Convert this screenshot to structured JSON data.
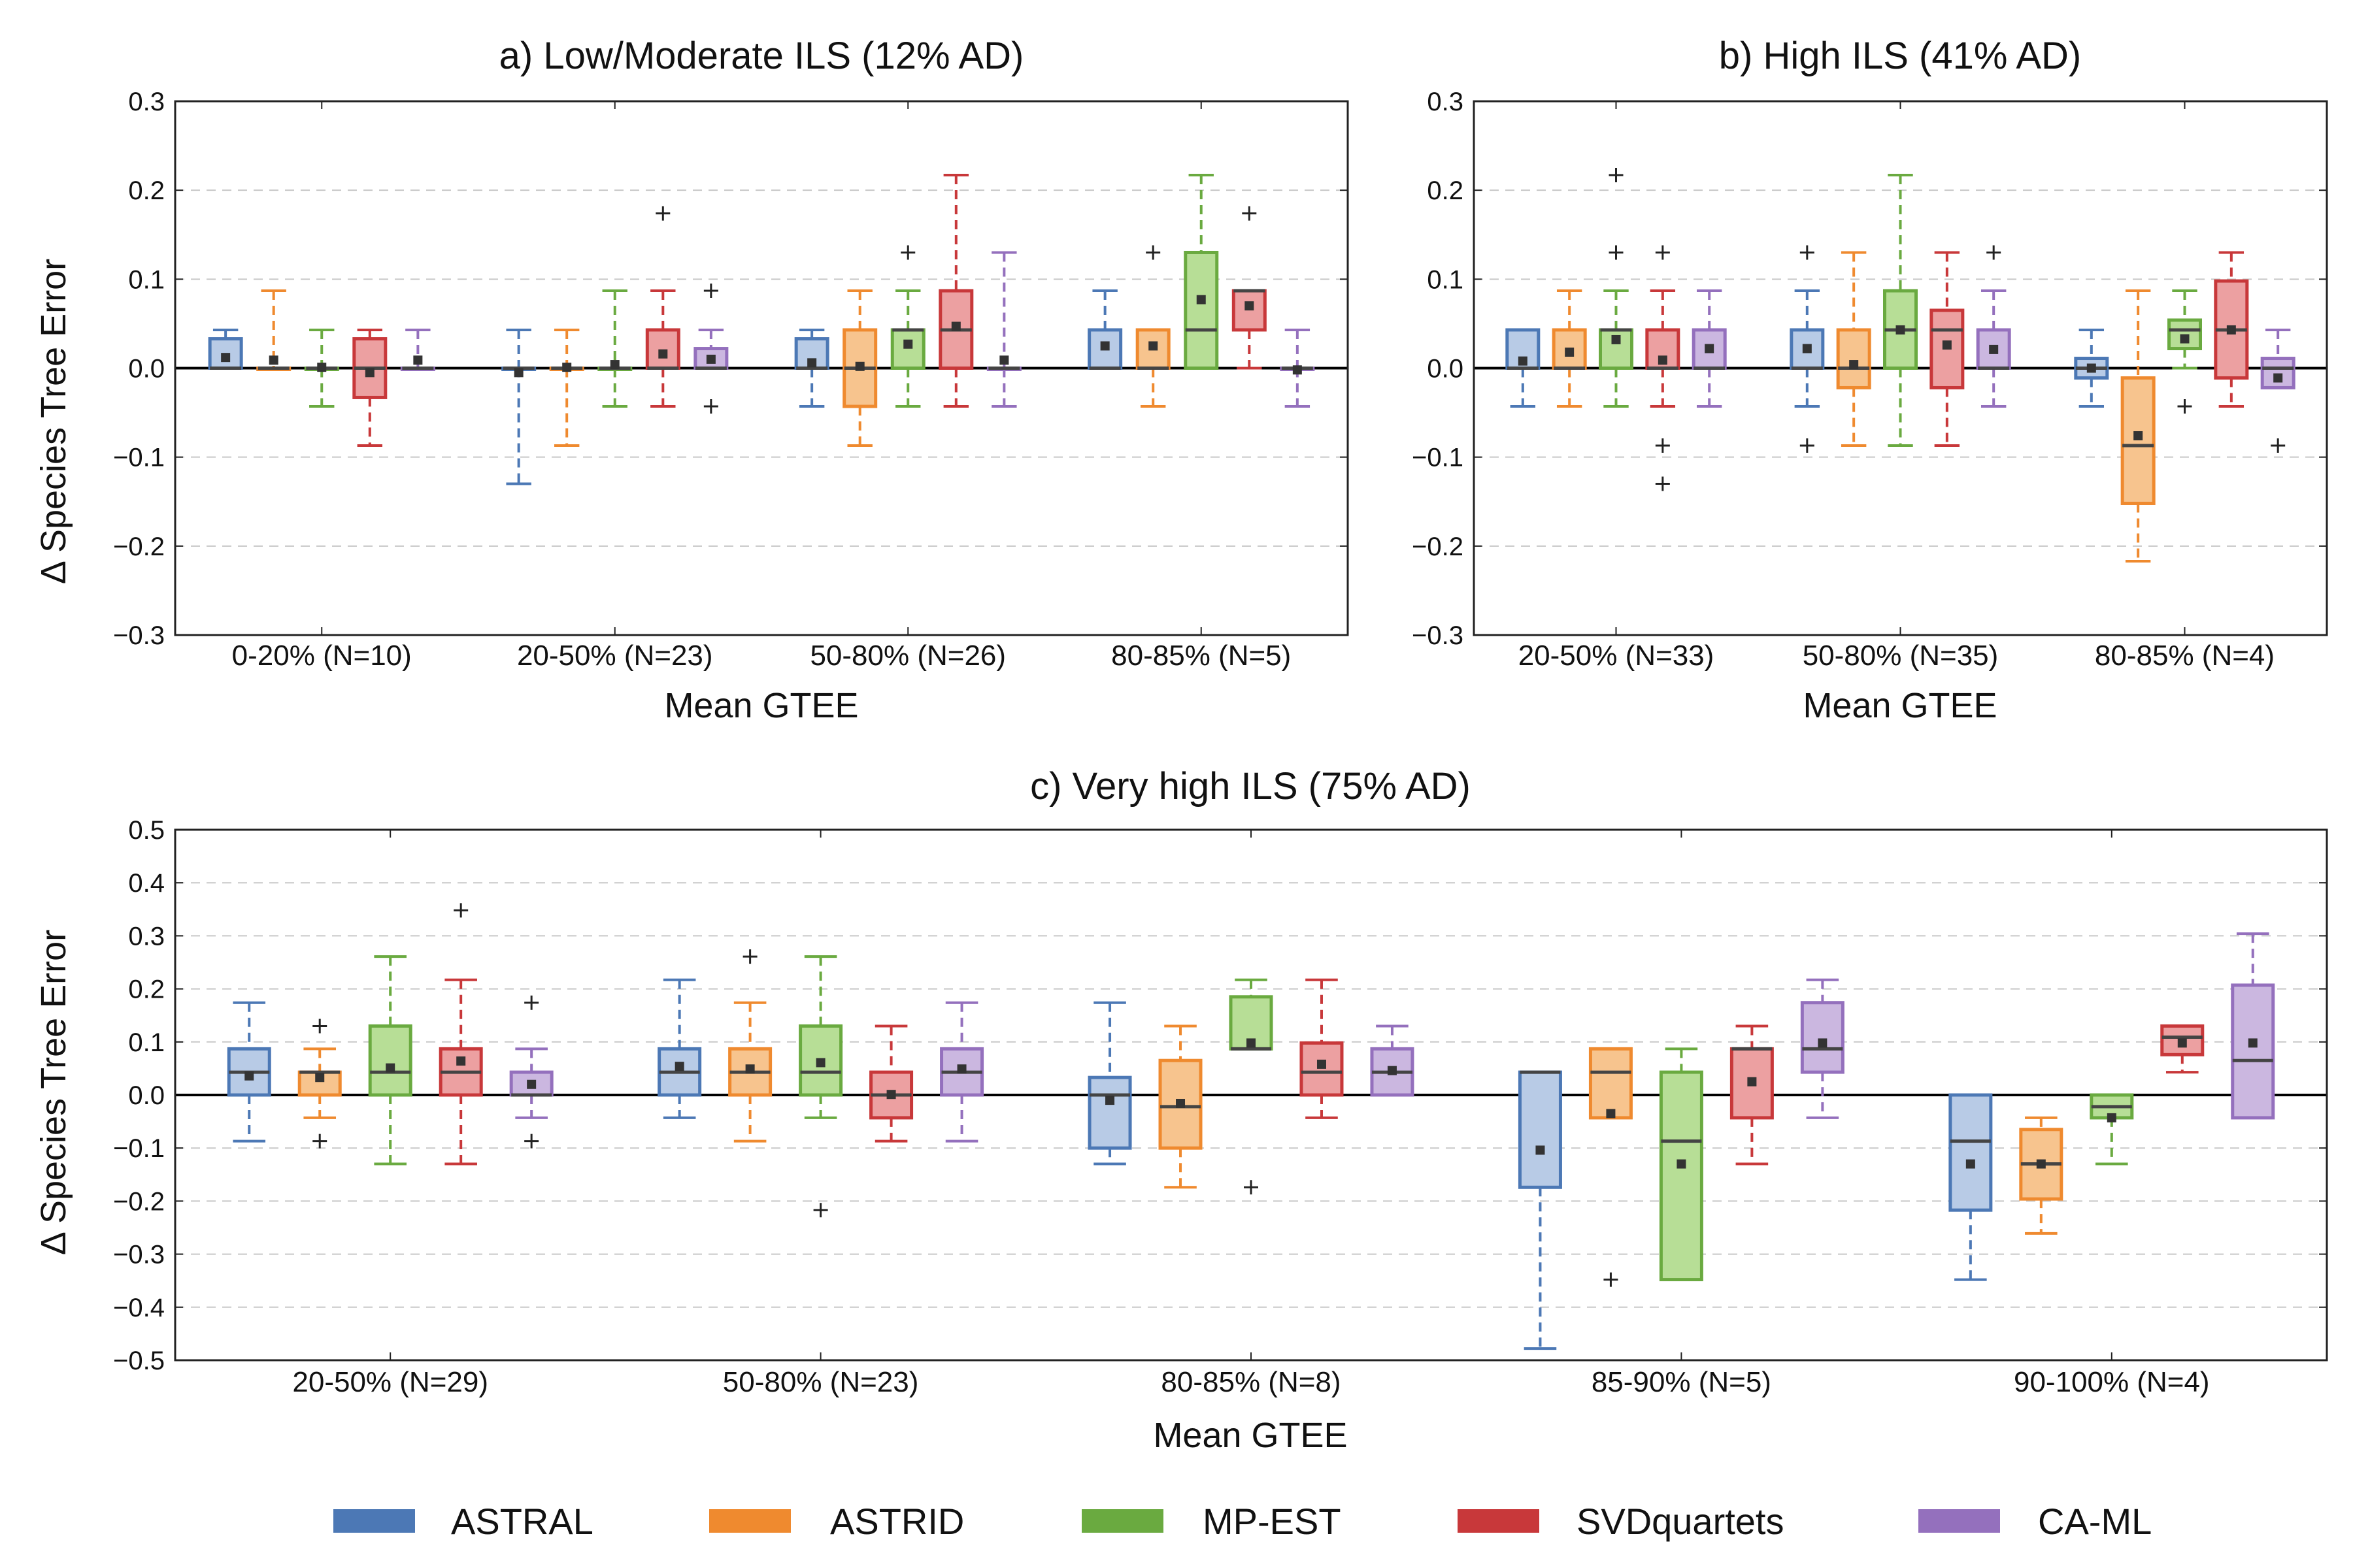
{
  "chart_data": [
    {
      "type": "box",
      "title": "a) Low/Moderate ILS (12% AD)",
      "xlabel": "Mean GTEE",
      "ylabel": "Δ Species Tree Error",
      "ylim": [
        -0.3,
        0.3
      ],
      "yticks": [
        "0.3",
        "0.2",
        "0.1",
        "0.0",
        "−0.1",
        "−0.2",
        "−0.3"
      ],
      "ytick_values": [
        0.3,
        0.2,
        0.1,
        0.0,
        -0.1,
        -0.2,
        -0.3
      ],
      "grid": "horizontal dashed",
      "categories": [
        "0-20% (N=10)",
        "20-50% (N=23)",
        "50-80% (N=26)",
        "80-85% (N=5)"
      ],
      "series": [
        {
          "name": "ASTRAL",
          "boxes": [
            {
              "q1": 0.0,
              "med": 0.0,
              "q3": 0.033,
              "wlo": 0.0,
              "whi": 0.043,
              "mean": 0.012,
              "outliers": []
            },
            {
              "q1": 0.0,
              "med": 0.0,
              "q3": 0.0,
              "wlo": -0.13,
              "whi": 0.043,
              "mean": -0.005,
              "outliers": []
            },
            {
              "q1": 0.0,
              "med": 0.0,
              "q3": 0.033,
              "wlo": -0.043,
              "whi": 0.043,
              "mean": 0.006,
              "outliers": []
            },
            {
              "q1": 0.0,
              "med": 0.0,
              "q3": 0.043,
              "wlo": 0.0,
              "whi": 0.087,
              "mean": 0.025,
              "outliers": []
            }
          ]
        },
        {
          "name": "ASTRID",
          "boxes": [
            {
              "q1": 0.0,
              "med": 0.0,
              "q3": 0.0,
              "wlo": 0.0,
              "whi": 0.087,
              "mean": 0.009,
              "outliers": []
            },
            {
              "q1": 0.0,
              "med": 0.0,
              "q3": 0.0,
              "wlo": -0.087,
              "whi": 0.043,
              "mean": 0.001,
              "outliers": []
            },
            {
              "q1": -0.043,
              "med": 0.0,
              "q3": 0.043,
              "wlo": -0.087,
              "whi": 0.087,
              "mean": 0.002,
              "outliers": []
            },
            {
              "q1": 0.0,
              "med": 0.0,
              "q3": 0.043,
              "wlo": -0.043,
              "whi": 0.043,
              "mean": 0.025,
              "outliers": [
                0.13
              ]
            }
          ]
        },
        {
          "name": "MP-EST",
          "boxes": [
            {
              "q1": 0.0,
              "med": 0.0,
              "q3": 0.0,
              "wlo": -0.043,
              "whi": 0.043,
              "mean": 0.001,
              "outliers": []
            },
            {
              "q1": 0.0,
              "med": 0.0,
              "q3": 0.0,
              "wlo": -0.043,
              "whi": 0.087,
              "mean": 0.004,
              "outliers": []
            },
            {
              "q1": 0.0,
              "med": 0.043,
              "q3": 0.043,
              "wlo": -0.043,
              "whi": 0.087,
              "mean": 0.027,
              "outliers": [
                0.13
              ]
            },
            {
              "q1": 0.0,
              "med": 0.043,
              "q3": 0.13,
              "wlo": 0.0,
              "whi": 0.217,
              "mean": 0.077,
              "outliers": []
            }
          ]
        },
        {
          "name": "SVDquartets",
          "boxes": [
            {
              "q1": -0.033,
              "med": 0.0,
              "q3": 0.033,
              "wlo": -0.087,
              "whi": 0.043,
              "mean": -0.005,
              "outliers": []
            },
            {
              "q1": 0.0,
              "med": 0.0,
              "q3": 0.043,
              "wlo": -0.043,
              "whi": 0.087,
              "mean": 0.016,
              "outliers": [
                0.174
              ]
            },
            {
              "q1": 0.0,
              "med": 0.043,
              "q3": 0.087,
              "wlo": -0.043,
              "whi": 0.217,
              "mean": 0.047,
              "outliers": []
            },
            {
              "q1": 0.043,
              "med": 0.087,
              "q3": 0.087,
              "wlo": 0.0,
              "whi": 0.087,
              "mean": 0.07,
              "outliers": [
                0.174
              ]
            }
          ]
        },
        {
          "name": "CA-ML",
          "boxes": [
            {
              "q1": 0.0,
              "med": 0.0,
              "q3": 0.0,
              "wlo": 0.0,
              "whi": 0.043,
              "mean": 0.009,
              "outliers": []
            },
            {
              "q1": 0.0,
              "med": 0.0,
              "q3": 0.022,
              "wlo": 0.0,
              "whi": 0.043,
              "mean": 0.01,
              "outliers": [
                0.087,
                -0.043
              ]
            },
            {
              "q1": 0.0,
              "med": 0.0,
              "q3": 0.0,
              "wlo": -0.043,
              "whi": 0.13,
              "mean": 0.009,
              "outliers": []
            },
            {
              "q1": 0.0,
              "med": 0.0,
              "q3": 0.0,
              "wlo": -0.043,
              "whi": 0.043,
              "mean": -0.002,
              "outliers": []
            }
          ]
        }
      ]
    },
    {
      "type": "box",
      "title": "b) High ILS (41% AD)",
      "xlabel": "Mean GTEE",
      "ylabel": "",
      "ylim": [
        -0.3,
        0.3
      ],
      "yticks": [
        "0.3",
        "0.2",
        "0.1",
        "0.0",
        "−0.1",
        "−0.2",
        "−0.3"
      ],
      "ytick_values": [
        0.3,
        0.2,
        0.1,
        0.0,
        -0.1,
        -0.2,
        -0.3
      ],
      "grid": "horizontal dashed",
      "categories": [
        "20-50% (N=33)",
        "50-80% (N=35)",
        "80-85% (N=4)"
      ],
      "series": [
        {
          "name": "ASTRAL",
          "boxes": [
            {
              "q1": 0.0,
              "med": 0.0,
              "q3": 0.043,
              "wlo": -0.043,
              "whi": 0.043,
              "mean": 0.008,
              "outliers": []
            },
            {
              "q1": 0.0,
              "med": 0.0,
              "q3": 0.043,
              "wlo": -0.043,
              "whi": 0.087,
              "mean": 0.022,
              "outliers": [
                0.13,
                -0.087
              ]
            },
            {
              "q1": -0.011,
              "med": 0.0,
              "q3": 0.011,
              "wlo": -0.043,
              "whi": 0.043,
              "mean": 0.0,
              "outliers": []
            }
          ]
        },
        {
          "name": "ASTRID",
          "boxes": [
            {
              "q1": 0.0,
              "med": 0.0,
              "q3": 0.043,
              "wlo": -0.043,
              "whi": 0.087,
              "mean": 0.018,
              "outliers": []
            },
            {
              "q1": -0.022,
              "med": 0.0,
              "q3": 0.043,
              "wlo": -0.087,
              "whi": 0.13,
              "mean": 0.004,
              "outliers": []
            },
            {
              "q1": -0.152,
              "med": -0.087,
              "q3": -0.011,
              "wlo": -0.217,
              "whi": 0.087,
              "mean": -0.076,
              "outliers": []
            }
          ]
        },
        {
          "name": "MP-EST",
          "boxes": [
            {
              "q1": 0.0,
              "med": 0.043,
              "q3": 0.043,
              "wlo": -0.043,
              "whi": 0.087,
              "mean": 0.032,
              "outliers": [
                0.217,
                0.13
              ]
            },
            {
              "q1": 0.0,
              "med": 0.043,
              "q3": 0.087,
              "wlo": -0.087,
              "whi": 0.217,
              "mean": 0.043,
              "outliers": []
            },
            {
              "q1": 0.022,
              "med": 0.043,
              "q3": 0.054,
              "wlo": 0.0,
              "whi": 0.087,
              "mean": 0.033,
              "outliers": [
                -0.043
              ]
            }
          ]
        },
        {
          "name": "SVDquartets",
          "boxes": [
            {
              "q1": 0.0,
              "med": 0.0,
              "q3": 0.043,
              "wlo": -0.043,
              "whi": 0.087,
              "mean": 0.009,
              "outliers": [
                0.13,
                -0.087,
                -0.13
              ]
            },
            {
              "q1": -0.022,
              "med": 0.043,
              "q3": 0.065,
              "wlo": -0.087,
              "whi": 0.13,
              "mean": 0.026,
              "outliers": []
            },
            {
              "q1": -0.011,
              "med": 0.043,
              "q3": 0.098,
              "wlo": -0.043,
              "whi": 0.13,
              "mean": 0.043,
              "outliers": []
            }
          ]
        },
        {
          "name": "CA-ML",
          "boxes": [
            {
              "q1": 0.0,
              "med": 0.0,
              "q3": 0.043,
              "wlo": -0.043,
              "whi": 0.087,
              "mean": 0.022,
              "outliers": []
            },
            {
              "q1": 0.0,
              "med": 0.0,
              "q3": 0.043,
              "wlo": -0.043,
              "whi": 0.087,
              "mean": 0.021,
              "outliers": [
                0.13
              ]
            },
            {
              "q1": -0.022,
              "med": 0.0,
              "q3": 0.011,
              "wlo": -0.022,
              "whi": 0.043,
              "mean": -0.011,
              "outliers": [
                -0.087
              ]
            }
          ]
        }
      ]
    },
    {
      "type": "box",
      "title": "c) Very high ILS (75% AD)",
      "xlabel": "Mean GTEE",
      "ylabel": "Δ Species Tree Error",
      "ylim": [
        -0.5,
        0.5
      ],
      "yticks": [
        "0.5",
        "0.4",
        "0.3",
        "0.2",
        "0.1",
        "0.0",
        "−0.1",
        "−0.2",
        "−0.3",
        "−0.4",
        "−0.5"
      ],
      "ytick_values": [
        0.5,
        0.4,
        0.3,
        0.2,
        0.1,
        0.0,
        -0.1,
        -0.2,
        -0.3,
        -0.4,
        -0.5
      ],
      "grid": "horizontal dashed",
      "categories": [
        "20-50% (N=29)",
        "50-80% (N=23)",
        "80-85% (N=8)",
        "85-90% (N=5)",
        "90-100% (N=4)"
      ],
      "series": [
        {
          "name": "ASTRAL",
          "boxes": [
            {
              "q1": 0.0,
              "med": 0.043,
              "q3": 0.087,
              "wlo": -0.087,
              "whi": 0.174,
              "mean": 0.036,
              "outliers": []
            },
            {
              "q1": 0.0,
              "med": 0.043,
              "q3": 0.087,
              "wlo": -0.043,
              "whi": 0.217,
              "mean": 0.054,
              "outliers": []
            },
            {
              "q1": -0.1,
              "med": 0.0,
              "q3": 0.033,
              "wlo": -0.13,
              "whi": 0.174,
              "mean": -0.01,
              "outliers": []
            },
            {
              "q1": -0.174,
              "med": 0.043,
              "q3": 0.043,
              "wlo": -0.478,
              "whi": 0.043,
              "mean": -0.104,
              "outliers": []
            },
            {
              "q1": -0.217,
              "med": -0.087,
              "q3": 0.0,
              "wlo": -0.348,
              "whi": 0.0,
              "mean": -0.13,
              "outliers": []
            }
          ]
        },
        {
          "name": "ASTRID",
          "boxes": [
            {
              "q1": 0.0,
              "med": 0.043,
              "q3": 0.043,
              "wlo": -0.043,
              "whi": 0.087,
              "mean": 0.033,
              "outliers": [
                0.13,
                -0.087
              ]
            },
            {
              "q1": 0.0,
              "med": 0.043,
              "q3": 0.087,
              "wlo": -0.087,
              "whi": 0.174,
              "mean": 0.049,
              "outliers": [
                0.261
              ]
            },
            {
              "q1": -0.1,
              "med": -0.022,
              "q3": 0.065,
              "wlo": -0.174,
              "whi": 0.13,
              "mean": -0.016,
              "outliers": []
            },
            {
              "q1": -0.043,
              "med": 0.043,
              "q3": 0.087,
              "wlo": -0.043,
              "whi": 0.087,
              "mean": -0.035,
              "outliers": [
                -0.348
              ]
            },
            {
              "q1": -0.196,
              "med": -0.13,
              "q3": -0.065,
              "wlo": -0.261,
              "whi": -0.043,
              "mean": -0.13,
              "outliers": []
            }
          ]
        },
        {
          "name": "MP-EST",
          "boxes": [
            {
              "q1": 0.0,
              "med": 0.043,
              "q3": 0.13,
              "wlo": -0.13,
              "whi": 0.261,
              "mean": 0.051,
              "outliers": []
            },
            {
              "q1": 0.0,
              "med": 0.043,
              "q3": 0.13,
              "wlo": -0.043,
              "whi": 0.261,
              "mean": 0.061,
              "outliers": [
                -0.217
              ]
            },
            {
              "q1": 0.087,
              "med": 0.087,
              "q3": 0.185,
              "wlo": 0.087,
              "whi": 0.217,
              "mean": 0.098,
              "outliers": [
                -0.174
              ]
            },
            {
              "q1": -0.348,
              "med": -0.087,
              "q3": 0.043,
              "wlo": -0.348,
              "whi": 0.087,
              "mean": -0.13,
              "outliers": []
            },
            {
              "q1": -0.043,
              "med": -0.022,
              "q3": 0.0,
              "wlo": -0.13,
              "whi": 0.0,
              "mean": -0.043,
              "outliers": []
            }
          ]
        },
        {
          "name": "SVDquartets",
          "boxes": [
            {
              "q1": 0.0,
              "med": 0.043,
              "q3": 0.087,
              "wlo": -0.13,
              "whi": 0.217,
              "mean": 0.064,
              "outliers": [
                0.348
              ]
            },
            {
              "q1": -0.043,
              "med": 0.0,
              "q3": 0.043,
              "wlo": -0.087,
              "whi": 0.13,
              "mean": 0.001,
              "outliers": []
            },
            {
              "q1": 0.0,
              "med": 0.043,
              "q3": 0.098,
              "wlo": -0.043,
              "whi": 0.217,
              "mean": 0.058,
              "outliers": []
            },
            {
              "q1": -0.043,
              "med": 0.087,
              "q3": 0.087,
              "wlo": -0.13,
              "whi": 0.13,
              "mean": 0.025,
              "outliers": []
            },
            {
              "q1": 0.076,
              "med": 0.109,
              "q3": 0.13,
              "wlo": 0.043,
              "whi": 0.13,
              "mean": 0.098,
              "outliers": []
            }
          ]
        },
        {
          "name": "CA-ML",
          "boxes": [
            {
              "q1": 0.0,
              "med": 0.0,
              "q3": 0.043,
              "wlo": -0.043,
              "whi": 0.087,
              "mean": 0.02,
              "outliers": [
                0.174,
                -0.087
              ]
            },
            {
              "q1": 0.0,
              "med": 0.043,
              "q3": 0.087,
              "wlo": -0.087,
              "whi": 0.174,
              "mean": 0.049,
              "outliers": []
            },
            {
              "q1": 0.0,
              "med": 0.043,
              "q3": 0.087,
              "wlo": 0.0,
              "whi": 0.13,
              "mean": 0.046,
              "outliers": []
            },
            {
              "q1": 0.043,
              "med": 0.087,
              "q3": 0.174,
              "wlo": -0.043,
              "whi": 0.217,
              "mean": 0.098,
              "outliers": []
            },
            {
              "q1": -0.043,
              "med": 0.065,
              "q3": 0.207,
              "wlo": -0.043,
              "whi": 0.304,
              "mean": 0.098,
              "outliers": []
            }
          ]
        }
      ]
    }
  ],
  "legend": {
    "placement": "bottom",
    "items": [
      {
        "label": "ASTRAL",
        "color": "#4c78b5"
      },
      {
        "label": "ASTRID",
        "color": "#ef8a2f"
      },
      {
        "label": "MP-EST",
        "color": "#6aaa40"
      },
      {
        "label": "SVDquartets",
        "color": "#c8383a"
      },
      {
        "label": "CA-ML",
        "color": "#9470bd"
      }
    ]
  },
  "colors": {
    "ASTRAL": {
      "edge": "#4c78b5",
      "fill": "#b8cbe6"
    },
    "ASTRID": {
      "edge": "#ef8a2f",
      "fill": "#f7c48e"
    },
    "MP-EST": {
      "edge": "#6aaa40",
      "fill": "#b7de96"
    },
    "SVDquartets": {
      "edge": "#c8383a",
      "fill": "#eca0a1"
    },
    "CA-ML": {
      "edge": "#9470bd",
      "fill": "#cbb7e0"
    }
  }
}
